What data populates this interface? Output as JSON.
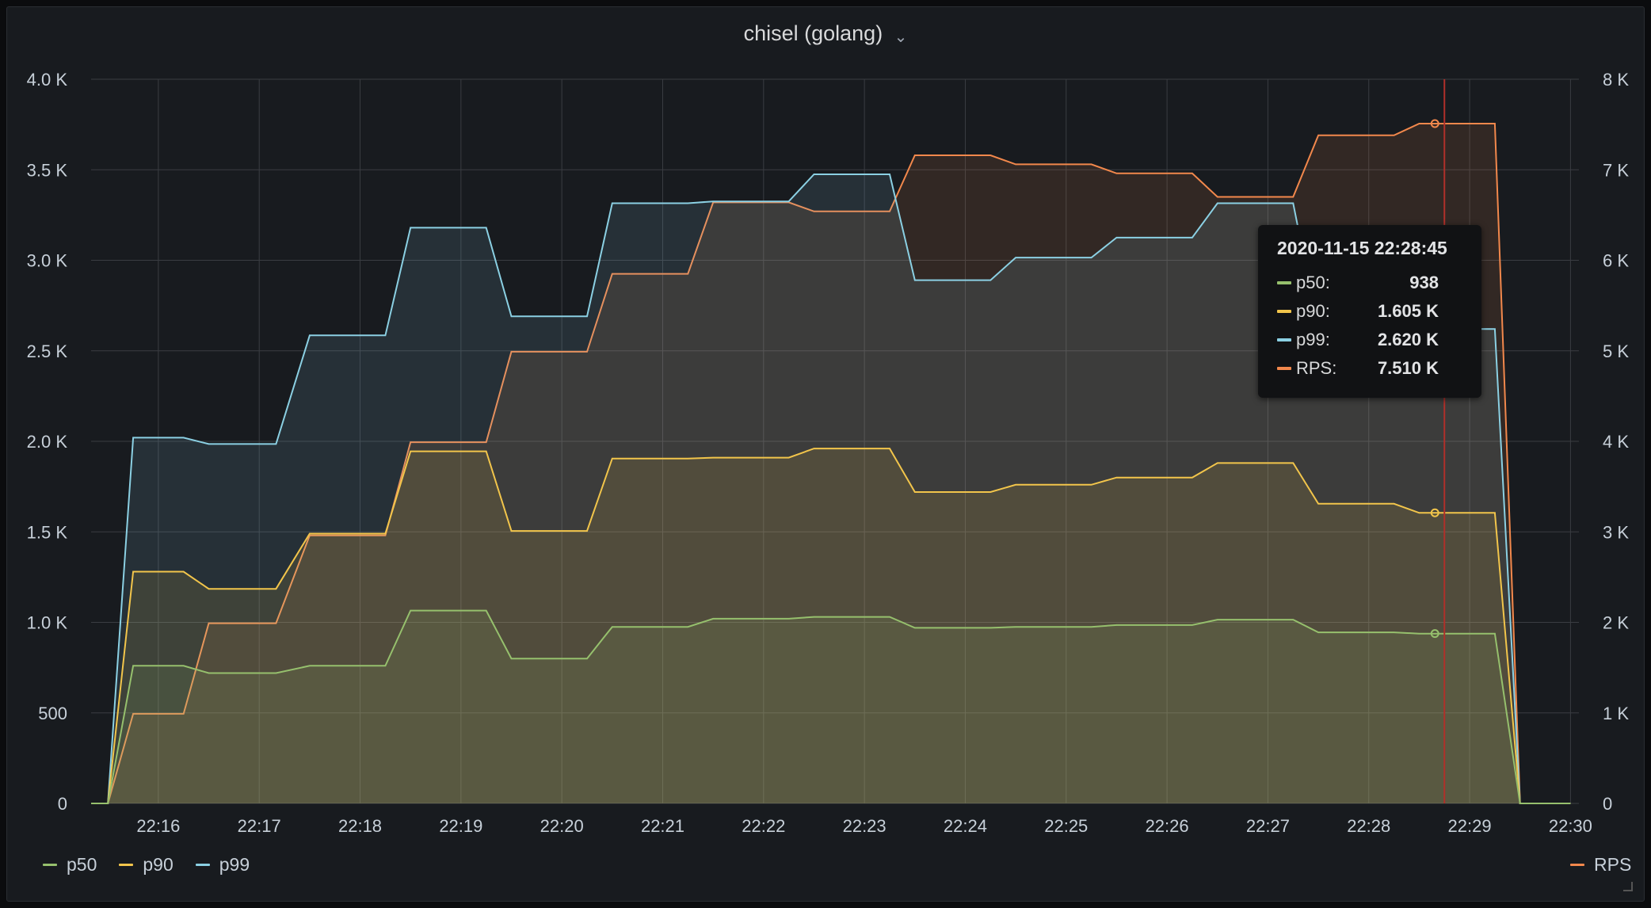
{
  "panel": {
    "title": "chisel (golang)",
    "title_menu_icon": "chevron-down-icon"
  },
  "colors": {
    "p50": "#96c06d",
    "p90": "#f2c54b",
    "p99": "#8bd0e3",
    "RPS": "#f2884c",
    "grid": "#3a3d42",
    "crosshair": "#b0302a"
  },
  "chart_data": {
    "type": "line",
    "x_ticks": [
      "22:16",
      "22:17",
      "22:18",
      "22:19",
      "22:20",
      "22:21",
      "22:22",
      "22:23",
      "22:24",
      "22:25",
      "22:26",
      "22:27",
      "22:28",
      "22:29",
      "22:30"
    ],
    "y_left_ticks": [
      "0",
      "500",
      "1.0 K",
      "1.5 K",
      "2.0 K",
      "2.5 K",
      "3.0 K",
      "3.5 K",
      "4.0 K"
    ],
    "y_right_ticks": [
      "0",
      "1 K",
      "2 K",
      "3 K",
      "4 K",
      "5 K",
      "6 K",
      "7 K",
      "8 K"
    ],
    "y_left_range": [
      0,
      4000
    ],
    "y_right_range": [
      0,
      8000
    ],
    "x_range": [
      "22:15:20",
      "22:30:05"
    ],
    "grid": true,
    "legend_left": [
      "p50",
      "p90",
      "p99"
    ],
    "legend_right": [
      "RPS"
    ],
    "series": [
      {
        "name": "p50",
        "axis": "left",
        "points": [
          [
            "22:15:20",
            0
          ],
          [
            "22:15:30",
            0
          ],
          [
            "22:15:45",
            760
          ],
          [
            "22:16:15",
            760
          ],
          [
            "22:16:30",
            720
          ],
          [
            "22:17:10",
            720
          ],
          [
            "22:17:30",
            760
          ],
          [
            "22:18:15",
            760
          ],
          [
            "22:18:30",
            1065
          ],
          [
            "22:19:15",
            1065
          ],
          [
            "22:19:30",
            800
          ],
          [
            "22:20:15",
            800
          ],
          [
            "22:20:30",
            975
          ],
          [
            "22:21:15",
            975
          ],
          [
            "22:21:30",
            1020
          ],
          [
            "22:22:15",
            1020
          ],
          [
            "22:22:30",
            1030
          ],
          [
            "22:23:15",
            1030
          ],
          [
            "22:23:30",
            970
          ],
          [
            "22:24:15",
            970
          ],
          [
            "22:24:30",
            975
          ],
          [
            "22:25:15",
            975
          ],
          [
            "22:25:30",
            985
          ],
          [
            "22:26:15",
            985
          ],
          [
            "22:26:30",
            1015
          ],
          [
            "22:27:15",
            1015
          ],
          [
            "22:27:30",
            945
          ],
          [
            "22:28:15",
            945
          ],
          [
            "22:28:30",
            938
          ],
          [
            "22:29:15",
            938
          ],
          [
            "22:29:30",
            0
          ],
          [
            "22:30:00",
            0
          ]
        ]
      },
      {
        "name": "p90",
        "axis": "left",
        "points": [
          [
            "22:15:20",
            0
          ],
          [
            "22:15:30",
            0
          ],
          [
            "22:15:45",
            1280
          ],
          [
            "22:16:15",
            1280
          ],
          [
            "22:16:30",
            1185
          ],
          [
            "22:17:10",
            1185
          ],
          [
            "22:17:30",
            1490
          ],
          [
            "22:18:15",
            1490
          ],
          [
            "22:18:30",
            1945
          ],
          [
            "22:19:15",
            1945
          ],
          [
            "22:19:30",
            1505
          ],
          [
            "22:20:15",
            1505
          ],
          [
            "22:20:30",
            1905
          ],
          [
            "22:21:15",
            1905
          ],
          [
            "22:21:30",
            1910
          ],
          [
            "22:22:15",
            1910
          ],
          [
            "22:22:30",
            1960
          ],
          [
            "22:23:15",
            1960
          ],
          [
            "22:23:30",
            1720
          ],
          [
            "22:24:15",
            1720
          ],
          [
            "22:24:30",
            1760
          ],
          [
            "22:25:15",
            1760
          ],
          [
            "22:25:30",
            1800
          ],
          [
            "22:26:15",
            1800
          ],
          [
            "22:26:30",
            1880
          ],
          [
            "22:27:15",
            1880
          ],
          [
            "22:27:30",
            1655
          ],
          [
            "22:28:15",
            1655
          ],
          [
            "22:28:30",
            1605
          ],
          [
            "22:29:15",
            1605
          ],
          [
            "22:29:30",
            0
          ],
          [
            "22:30:00",
            0
          ]
        ]
      },
      {
        "name": "p99",
        "axis": "left",
        "points": [
          [
            "22:15:20",
            0
          ],
          [
            "22:15:30",
            0
          ],
          [
            "22:15:45",
            2020
          ],
          [
            "22:16:15",
            2020
          ],
          [
            "22:16:30",
            1985
          ],
          [
            "22:17:10",
            1985
          ],
          [
            "22:17:30",
            2585
          ],
          [
            "22:18:15",
            2585
          ],
          [
            "22:18:30",
            3180
          ],
          [
            "22:19:15",
            3180
          ],
          [
            "22:19:30",
            2690
          ],
          [
            "22:20:15",
            2690
          ],
          [
            "22:20:30",
            3315
          ],
          [
            "22:21:15",
            3315
          ],
          [
            "22:21:30",
            3325
          ],
          [
            "22:22:15",
            3325
          ],
          [
            "22:22:30",
            3475
          ],
          [
            "22:23:15",
            3475
          ],
          [
            "22:23:30",
            2890
          ],
          [
            "22:24:15",
            2890
          ],
          [
            "22:24:30",
            3015
          ],
          [
            "22:25:15",
            3015
          ],
          [
            "22:25:30",
            3125
          ],
          [
            "22:26:15",
            3125
          ],
          [
            "22:26:30",
            3315
          ],
          [
            "22:27:15",
            3315
          ],
          [
            "22:27:30",
            2620
          ],
          [
            "22:28:15",
            2620
          ],
          [
            "22:28:30",
            2620
          ],
          [
            "22:29:15",
            2620
          ],
          [
            "22:29:30",
            0
          ],
          [
            "22:30:00",
            0
          ]
        ]
      },
      {
        "name": "RPS",
        "axis": "right",
        "points": [
          [
            "22:15:20",
            0
          ],
          [
            "22:15:30",
            0
          ],
          [
            "22:15:45",
            990
          ],
          [
            "22:16:15",
            990
          ],
          [
            "22:16:30",
            1990
          ],
          [
            "22:17:10",
            1990
          ],
          [
            "22:17:30",
            2960
          ],
          [
            "22:18:15",
            2960
          ],
          [
            "22:18:30",
            3990
          ],
          [
            "22:19:15",
            3990
          ],
          [
            "22:19:30",
            4990
          ],
          [
            "22:20:15",
            4990
          ],
          [
            "22:20:30",
            5850
          ],
          [
            "22:21:15",
            5850
          ],
          [
            "22:21:30",
            6640
          ],
          [
            "22:22:15",
            6640
          ],
          [
            "22:22:30",
            6540
          ],
          [
            "22:23:15",
            6540
          ],
          [
            "22:23:30",
            7160
          ],
          [
            "22:24:15",
            7160
          ],
          [
            "22:24:30",
            7060
          ],
          [
            "22:25:15",
            7060
          ],
          [
            "22:25:30",
            6960
          ],
          [
            "22:26:15",
            6960
          ],
          [
            "22:26:30",
            6700
          ],
          [
            "22:27:15",
            6700
          ],
          [
            "22:27:30",
            7380
          ],
          [
            "22:28:15",
            7380
          ],
          [
            "22:28:30",
            7510
          ],
          [
            "22:29:15",
            7510
          ],
          [
            "22:29:30",
            0
          ],
          [
            "22:30:00",
            0
          ]
        ]
      }
    ]
  },
  "crosshair_time": "22:28:45",
  "tooltip": {
    "time": "2020-11-15 22:28:45",
    "rows": [
      {
        "label": "p50:",
        "value": "938"
      },
      {
        "label": "p90:",
        "value": "1.605 K"
      },
      {
        "label": "p99:",
        "value": "2.620 K"
      },
      {
        "label": "RPS:",
        "value": "7.510 K"
      }
    ]
  }
}
